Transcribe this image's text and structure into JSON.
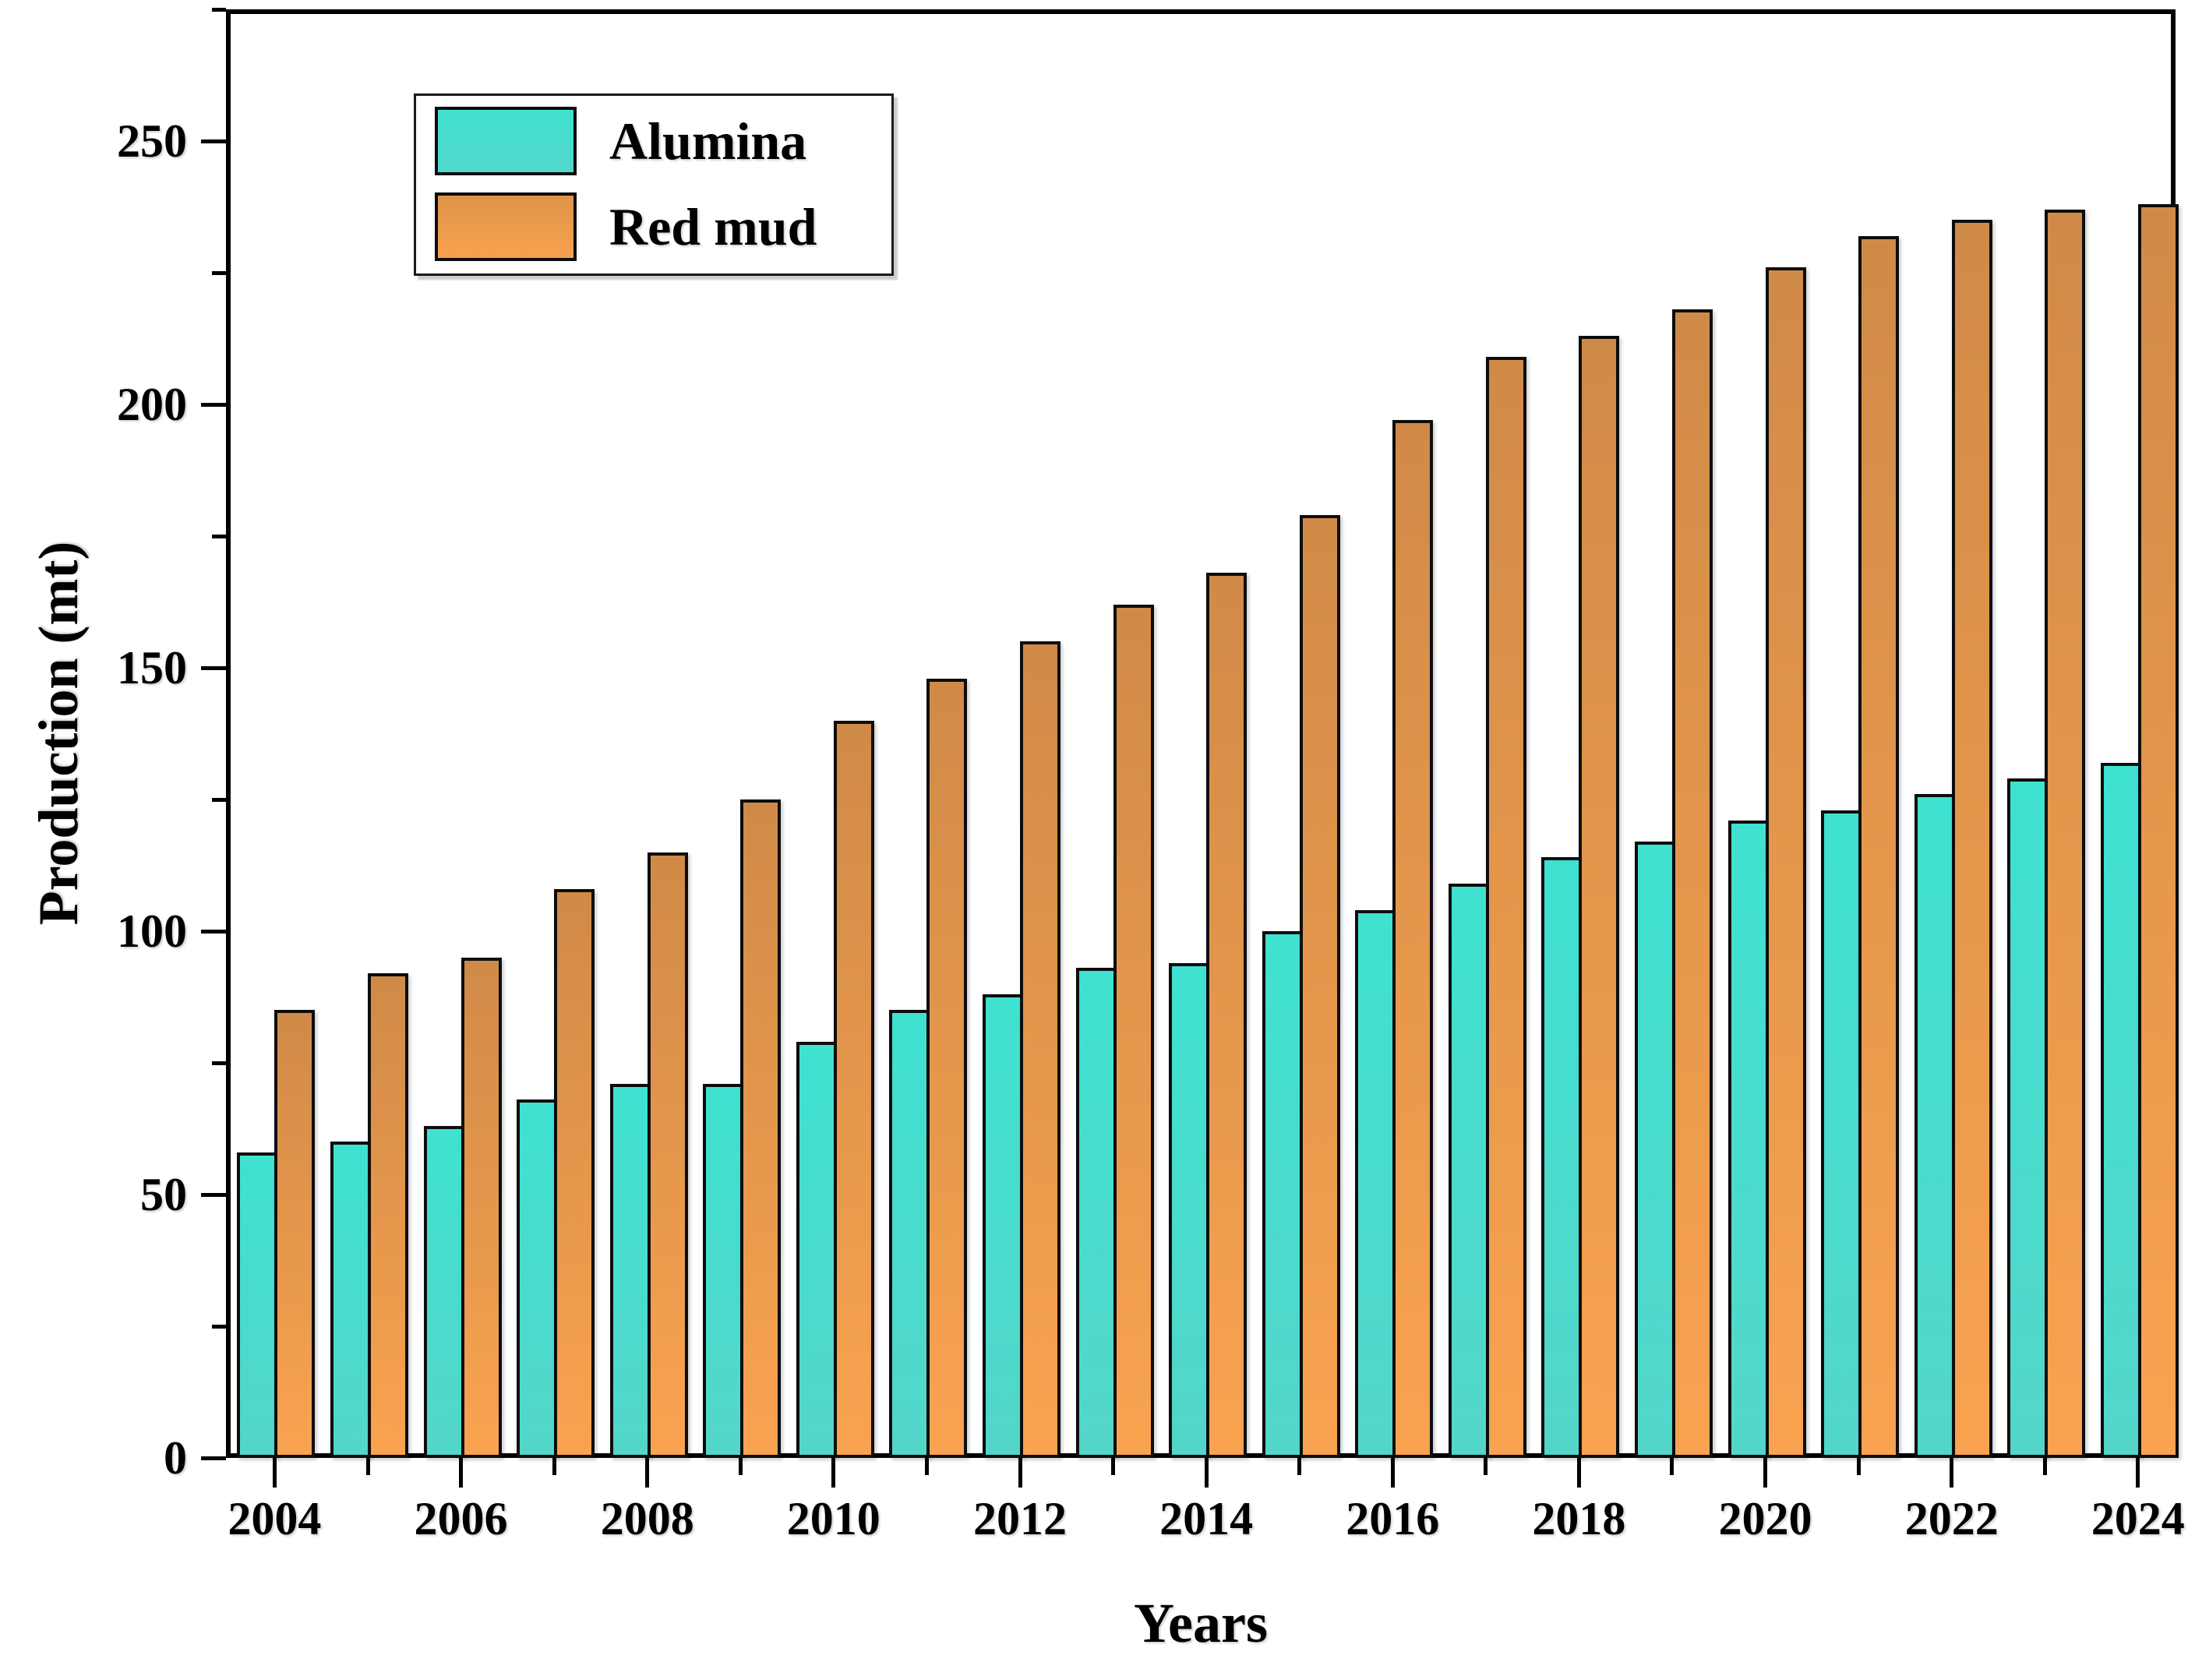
{
  "chart_data": {
    "type": "bar",
    "title": "",
    "xlabel": "Years",
    "ylabel": "Production (mt)",
    "categories": [
      2004,
      2005,
      2006,
      2007,
      2008,
      2009,
      2010,
      2011,
      2012,
      2013,
      2014,
      2015,
      2016,
      2017,
      2018,
      2019,
      2020,
      2021,
      2022,
      2023,
      2024
    ],
    "series": [
      {
        "name": "Alumina",
        "color_top": "#3FE1D1",
        "color_bottom": "#53D6C9",
        "values": [
          58,
          60,
          63,
          68,
          71,
          71,
          79,
          85,
          88,
          93,
          94,
          100,
          104,
          109,
          114,
          117,
          121,
          123,
          126,
          129,
          132
        ]
      },
      {
        "name": "Red mud",
        "color_top": "#D08A47",
        "color_bottom": "#F9A350",
        "values": [
          85,
          92,
          95,
          108,
          115,
          125,
          140,
          148,
          155,
          162,
          168,
          179,
          197,
          209,
          213,
          218,
          226,
          232,
          235,
          237,
          238
        ]
      }
    ],
    "ylim": [
      0,
      275
    ],
    "ytick_major_step": 50,
    "ytick_minor_step": 25,
    "ytick_labels": [
      "0",
      "50",
      "100",
      "150",
      "200",
      "250"
    ],
    "xtick_labeled_years": [
      2004,
      2006,
      2008,
      2010,
      2012,
      2014,
      2016,
      2018,
      2020,
      2022,
      2024
    ],
    "grid": "off",
    "legend_position": "upper-left-inside"
  },
  "legend": {
    "alumina_label": "Alumina",
    "redmud_label": "Red mud"
  }
}
